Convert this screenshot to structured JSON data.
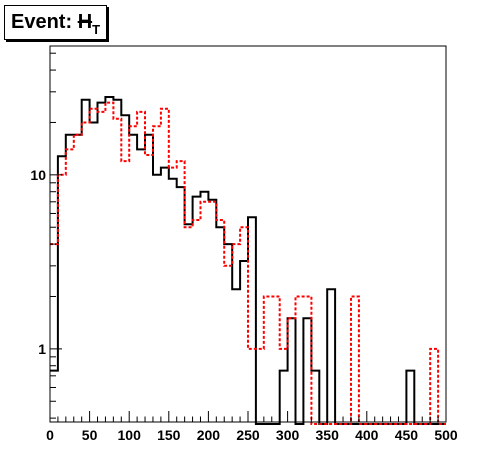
{
  "chart_data": {
    "type": "histogram",
    "title": "Event: H_T",
    "title_parts": {
      "prefix": "Event: ",
      "symbol": "H",
      "subscript": "T"
    },
    "xlim": [
      0,
      500
    ],
    "ylim": [
      0.38,
      55
    ],
    "yscale": "log",
    "x_ticks": [
      0,
      50,
      100,
      150,
      200,
      250,
      300,
      350,
      400,
      450,
      500
    ],
    "x_tick_labels": [
      "0",
      "50",
      "100",
      "150",
      "200",
      "250",
      "300",
      "350",
      "400",
      "450",
      "500"
    ],
    "y_tick_labels": [
      {
        "value": 10,
        "label": "10"
      },
      {
        "value": 1,
        "label": "1"
      }
    ],
    "bin_edges": [
      0,
      10,
      20,
      30,
      40,
      50,
      60,
      70,
      80,
      90,
      100,
      110,
      120,
      130,
      140,
      150,
      160,
      170,
      180,
      190,
      200,
      210,
      220,
      230,
      240,
      250,
      260,
      270,
      280,
      290,
      300,
      310,
      320,
      330,
      340,
      350,
      360,
      370,
      380,
      390,
      400,
      410,
      420,
      430,
      440,
      450,
      460,
      470,
      480,
      490,
      500
    ],
    "series": [
      {
        "color": "#000000",
        "style": "solid",
        "values": [
          0.75,
          12.8,
          17,
          17,
          27,
          20,
          26,
          28,
          27,
          22,
          17,
          14,
          17,
          10,
          11,
          9.5,
          8.5,
          5.2,
          7.5,
          8,
          7.2,
          5,
          4,
          2.2,
          3.2,
          5.7,
          0,
          0,
          0,
          0.75,
          1.5,
          0.3,
          1.5,
          0.75,
          0.3,
          2.2,
          0,
          0,
          0,
          0,
          0,
          0,
          0,
          0,
          0,
          0.75,
          0,
          0,
          0,
          0
        ]
      },
      {
        "color": "#ff0000",
        "style": "dashed",
        "values": [
          4,
          10,
          14,
          17,
          20,
          24,
          23,
          26,
          21,
          12,
          19,
          23,
          13,
          19,
          24,
          11,
          12,
          5,
          5.5,
          7,
          7,
          5.5,
          3,
          4,
          5,
          1,
          1,
          2,
          2,
          1,
          1.5,
          2,
          2,
          0.3,
          0.3,
          0.3,
          0.3,
          0.3,
          2,
          0.3,
          0.3,
          0.3,
          0.3,
          0.3,
          0.3,
          0.3,
          0.3,
          0.3,
          1,
          0.3
        ]
      }
    ],
    "grid": false,
    "legend": "none"
  }
}
